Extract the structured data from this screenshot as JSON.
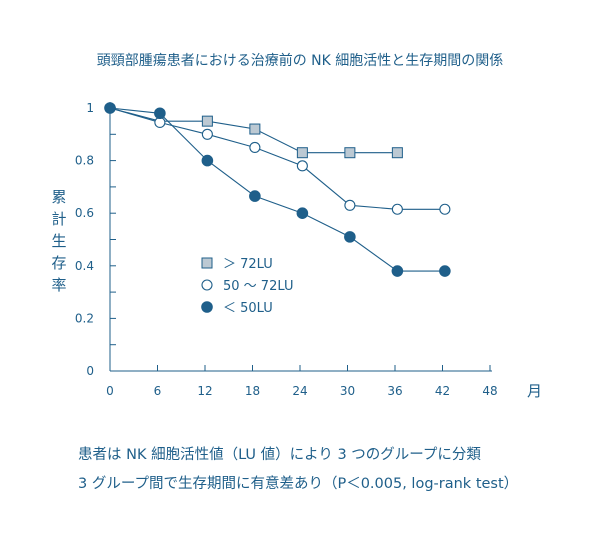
{
  "title": "頭頸部腫瘍患者における治療前の NK 細胞活性と生存期間の関係",
  "ylabel_chars": [
    "累",
    "計",
    "生",
    "存",
    "率"
  ],
  "x_unit": "月",
  "notes": [
    "患者は NK 細胞活性値（LU 値）により 3 つのグループに分類",
    "3 グループ間で生存期間に有意差あり（P＜0.005, log-rank test）"
  ],
  "colors": {
    "text": "#1f5f8a",
    "axis": "#1f5f8a",
    "line": "#1f5f8a",
    "square_fill": "#bcc9d3",
    "open_fill": "#ffffff",
    "filled": "#1f5f8a"
  },
  "chart_data": {
    "type": "line",
    "xlim": [
      0,
      48
    ],
    "ylim": [
      0,
      1
    ],
    "xticks": [
      0,
      6,
      12,
      18,
      24,
      30,
      36,
      42,
      48
    ],
    "yticks": [
      0,
      0.2,
      0.4,
      0.6,
      0.8,
      1
    ],
    "ytick_labels": [
      "0",
      "0.2",
      "0.4",
      "0.6",
      "0.8",
      "1"
    ],
    "legend_position": "center-left",
    "series": [
      {
        "name": "＞ 72LU",
        "marker": "square",
        "x": [
          0,
          6.3,
          12.3,
          18.3,
          24.3,
          30.3,
          36.3
        ],
        "y": [
          1.0,
          0.95,
          0.95,
          0.92,
          0.83,
          0.83,
          0.83
        ],
        "marker_x": [
          12.3,
          18.3,
          24.3,
          30.3,
          36.3
        ],
        "marker_y": [
          0.95,
          0.92,
          0.83,
          0.83,
          0.83
        ]
      },
      {
        "name": "50 ～ 72LU",
        "marker": "circle-open",
        "x": [
          0,
          6.3,
          12.3,
          18.3,
          24.3,
          30.3,
          36.3,
          42.3
        ],
        "y": [
          1.0,
          0.945,
          0.9,
          0.85,
          0.78,
          0.63,
          0.615,
          0.615
        ],
        "marker_x": [
          6.3,
          12.3,
          18.3,
          24.3,
          30.3,
          36.3,
          42.3
        ],
        "marker_y": [
          0.945,
          0.9,
          0.85,
          0.78,
          0.63,
          0.615,
          0.615
        ]
      },
      {
        "name": "＜ 50LU",
        "marker": "circle-filled",
        "x": [
          0,
          6.3,
          12.3,
          18.3,
          24.3,
          30.3,
          36.3,
          42.3
        ],
        "y": [
          1.0,
          0.98,
          0.8,
          0.665,
          0.6,
          0.51,
          0.38,
          0.38
        ],
        "marker_x": [
          0,
          6.3,
          12.3,
          18.3,
          24.3,
          30.3,
          36.3,
          42.3
        ],
        "marker_y": [
          1.0,
          0.98,
          0.8,
          0.665,
          0.6,
          0.51,
          0.38,
          0.38
        ]
      }
    ]
  }
}
